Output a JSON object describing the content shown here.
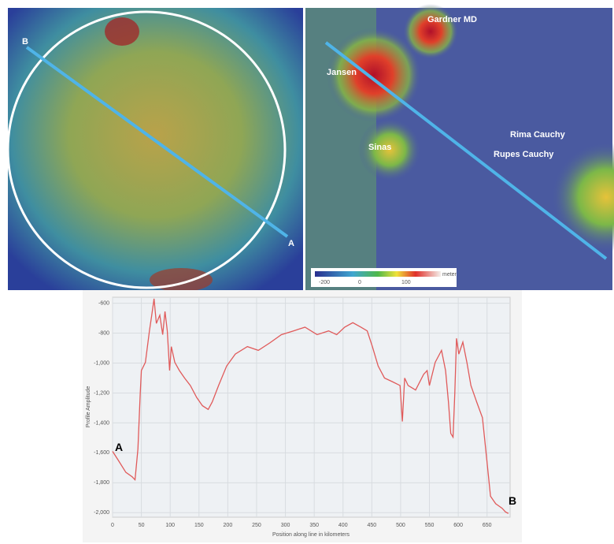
{
  "maps": {
    "left": {
      "labels": [
        "B",
        "A"
      ]
    },
    "right": {
      "labels": [
        "Gardner MD",
        "Jansen",
        "Sinas",
        "Rima Cauchy",
        "Rupes Cauchy"
      ],
      "colorbar": {
        "ticks": [
          "-200",
          "0",
          "100"
        ],
        "unit": "meter"
      }
    }
  },
  "chart_data": {
    "type": "line",
    "y_label": "Profile Amplitude",
    "x_label": "Position along line in kilometers",
    "annotations": [
      "A",
      "B"
    ],
    "color": "#e05a5a",
    "x": [
      0,
      10,
      23,
      34,
      39,
      44,
      48,
      50,
      57,
      64,
      68,
      72,
      76,
      82,
      87,
      91,
      95,
      99,
      102,
      108,
      116,
      125,
      135,
      146,
      156,
      166,
      173,
      184,
      198,
      213,
      234,
      253,
      273,
      293,
      314,
      334,
      355,
      375,
      389,
      403,
      417,
      431,
      442,
      451,
      461,
      472,
      486,
      499,
      503,
      507,
      513,
      526,
      540,
      546,
      550,
      560,
      571,
      578,
      583,
      587,
      591,
      594,
      597,
      601,
      608,
      615,
      622,
      632,
      642,
      649,
      656,
      665,
      676,
      682,
      687
    ],
    "values": [
      -1590,
      -1650,
      -1730,
      -1760,
      -1780,
      -1575,
      -1205,
      -1050,
      -995,
      -785,
      -680,
      -570,
      -735,
      -680,
      -810,
      -655,
      -785,
      -1050,
      -890,
      -995,
      -1050,
      -1100,
      -1150,
      -1230,
      -1285,
      -1310,
      -1260,
      -1150,
      -1020,
      -940,
      -890,
      -915,
      -865,
      -810,
      -785,
      -760,
      -810,
      -785,
      -810,
      -760,
      -730,
      -760,
      -785,
      -890,
      -1020,
      -1100,
      -1125,
      -1150,
      -1390,
      -1100,
      -1150,
      -1180,
      -1075,
      -1050,
      -1150,
      -995,
      -915,
      -1050,
      -1260,
      -1470,
      -1495,
      -1205,
      -835,
      -940,
      -860,
      -995,
      -1150,
      -1260,
      -1365,
      -1625,
      -1890,
      -1940,
      -1970,
      -1995,
      -2005
    ],
    "xlim": [
      0,
      690
    ],
    "ylim": [
      -2030,
      -560
    ],
    "xticks": [
      0,
      50,
      100,
      150,
      200,
      250,
      300,
      350,
      400,
      450,
      500,
      550,
      600,
      650
    ],
    "yticks": [
      -600,
      -800,
      {
        "value": -1000,
        "label": "-1,000"
      },
      {
        "value": -1200,
        "label": "-1,200"
      },
      {
        "value": -1400,
        "label": "-1,400"
      },
      {
        "value": -1600,
        "label": "-1,600"
      },
      {
        "value": -1800,
        "label": "-1,800"
      },
      {
        "value": -2000,
        "label": "-2,000"
      }
    ],
    "grid": true
  }
}
